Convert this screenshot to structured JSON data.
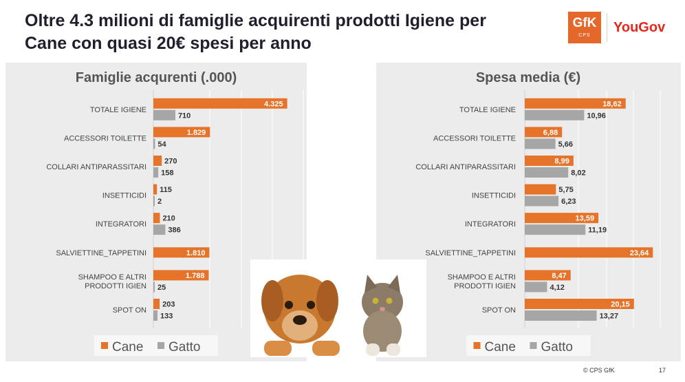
{
  "title": "Oltre 4.3 milioni di famiglie acquirenti prodotti Igiene per Cane con quasi 20€ spesi per anno",
  "logos": {
    "gfk": "GfK",
    "gfk_sub": "CPS",
    "yougov": "YouGov"
  },
  "footer": {
    "copyright": "© CPS GfK",
    "page": "17"
  },
  "colors": {
    "cane": "#e5742a",
    "gatto": "#a6a6a6",
    "panel_bg": "#ececec",
    "title_text": "#1f1f2e"
  },
  "illustration": {
    "description_icon": "dog-and-cat-icon"
  },
  "chart_data": [
    {
      "type": "bar",
      "title": "Famiglie acqurenti (.000)",
      "categories": [
        "TOTALE IGIENE",
        "ACCESSORI TOILETTE",
        "COLLARI ANTIPARASSITARI",
        "INSETTICIDI",
        "INTEGRATORI",
        "SALVIETTINE_TAPPETINI",
        "SHAMPOO E ALTRI PRODOTTI IGIEN",
        "SPOT ON"
      ],
      "xlim": [
        0,
        5000
      ],
      "series": [
        {
          "name": "Cane",
          "values": [
            4325,
            1829,
            270,
            115,
            210,
            1810,
            1788,
            203
          ],
          "labels": [
            "4.325",
            "1.829",
            "270",
            "115",
            "210",
            "1.810",
            "1.788",
            "203"
          ]
        },
        {
          "name": "Gatto",
          "values": [
            710,
            54,
            158,
            2,
            386,
            null,
            25,
            133
          ],
          "labels": [
            "710",
            "54",
            "158",
            "2",
            "386",
            null,
            "25",
            "133"
          ]
        }
      ],
      "legend": [
        "Cane",
        "Gatto"
      ]
    },
    {
      "type": "bar",
      "title": "Spesa media (€)",
      "categories": [
        "TOTALE IGIENE",
        "ACCESSORI TOILETTE",
        "COLLARI ANTIPARASSITARI",
        "INSETTICIDI",
        "INTEGRATORI",
        "SALVIETTINE_TAPPETINI",
        "SHAMPOO E ALTRI PRODOTTI IGIEN",
        "SPOT ON"
      ],
      "xlim": [
        0,
        25
      ],
      "series": [
        {
          "name": "Cane",
          "values": [
            18.62,
            6.88,
            8.99,
            5.75,
            13.59,
            23.64,
            8.47,
            20.15
          ],
          "labels": [
            "18,62",
            "6,88",
            "8,99",
            "5,75",
            "13,59",
            "23,64",
            "8,47",
            "20,15"
          ]
        },
        {
          "name": "Gatto",
          "values": [
            10.96,
            5.66,
            8.02,
            6.23,
            11.19,
            null,
            4.12,
            13.27
          ],
          "labels": [
            "10,96",
            "5,66",
            "8,02",
            "6,23",
            "11,19",
            null,
            "4,12",
            "13,27"
          ]
        }
      ],
      "legend": [
        "Cane",
        "Gatto"
      ]
    }
  ]
}
